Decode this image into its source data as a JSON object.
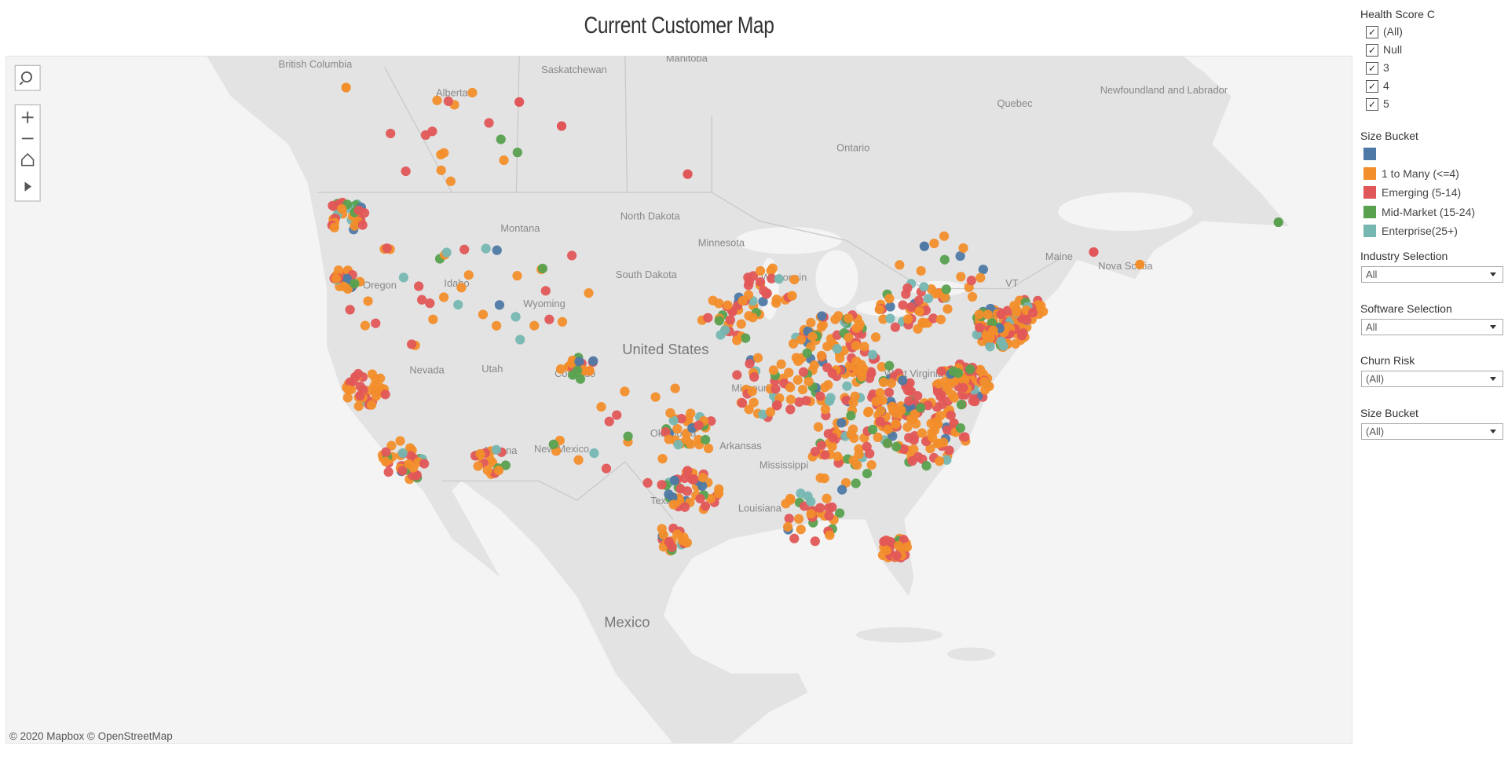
{
  "title": "Current Customer Map",
  "map": {
    "country_labels": [
      "United States",
      "Mexico"
    ],
    "region_labels": [
      "British Columbia",
      "Alberta",
      "Saskatchewan",
      "Manitoba",
      "Ontario",
      "Quebec",
      "Newfoundland and Labrador",
      "North Dakota",
      "South Dakota",
      "Montana",
      "Wyoming",
      "Idaho",
      "Oregon",
      "Nevada",
      "Utah",
      "Colorado",
      "New Mexico",
      "Arizona",
      "Texas",
      "Oklahoma",
      "Missouri",
      "Arkansas",
      "Mississippi",
      "Louisiana",
      "Minnesota",
      "Wisconsin",
      "West Virginia",
      "Maine",
      "Nova Scotia",
      "VT"
    ],
    "attribution": "© 2020 Mapbox © OpenStreetMap"
  },
  "filters": {
    "health_score": {
      "title": "Health Score C",
      "options": [
        "(All)",
        "Null",
        "3",
        "4",
        "5"
      ]
    },
    "size_legend": {
      "title": "Size Bucket",
      "items": [
        {
          "color": "#4e79a7"
        },
        {
          "label": "1 to Many (<=4)",
          "color": "#f28e2b"
        },
        {
          "label": "Emerging (5-14)",
          "color": "#e15759"
        },
        {
          "label": "Mid-Market (15-24)",
          "color": "#59a14f"
        },
        {
          "label": "Enterprise(25+)",
          "color": "#76b7b2"
        }
      ]
    },
    "dropdowns": [
      {
        "title": "Industry Selection",
        "value": "All"
      },
      {
        "title": "Software Selection",
        "value": "All"
      },
      {
        "title": "Churn Risk",
        "value": "(All)"
      },
      {
        "title": "Size Bucket",
        "value": "(All)"
      }
    ]
  }
}
